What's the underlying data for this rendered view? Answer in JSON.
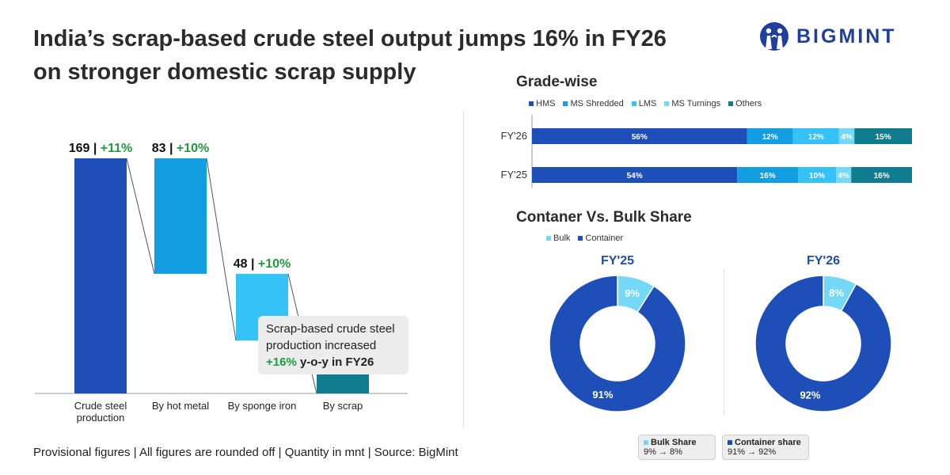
{
  "title_line1": "India’s scrap-based crude steel output jumps 16% in FY26",
  "title_line2": "on stronger domestic scrap supply",
  "logo_text": "BIGMINT",
  "footer": "Provisional figures | All figures are rounded off | Quantity in mnt | Source: BigMint",
  "callout": {
    "line1": "Scrap-based crude steel",
    "line2": "production increased",
    "highlight": "+16%",
    "rest": " y-o-y in FY26"
  },
  "chart_data": [
    {
      "type": "bar",
      "subtype": "waterfall",
      "categories": [
        "Crude steel production",
        "By hot metal",
        "By sponge iron",
        "By scrap"
      ],
      "category_lines": [
        [
          "Crude steel",
          "production"
        ],
        [
          "By hot metal"
        ],
        [
          "By sponge iron"
        ],
        [
          "By scrap"
        ]
      ],
      "values": [
        169,
        83,
        48,
        38
      ],
      "value_labels": [
        "169",
        "83",
        "48",
        "38"
      ],
      "yoy": [
        "+11%",
        "+10%",
        "+10%",
        "+16%"
      ],
      "colors": [
        "#1e4fb8",
        "#129ee0",
        "#35c3f7",
        "#0f7d8f"
      ],
      "total_index": 0
    },
    {
      "type": "bar",
      "subtype": "stacked-horizontal-100",
      "title": "Grade-wise",
      "categories": [
        "FY'26",
        "FY'25"
      ],
      "series": [
        {
          "name": "HMS",
          "color": "#1e4fb8",
          "values": [
            56,
            54
          ]
        },
        {
          "name": "MS Shredded",
          "color": "#129ee0",
          "values": [
            12,
            16
          ]
        },
        {
          "name": "LMS",
          "color": "#35c3f7",
          "values": [
            12,
            10
          ]
        },
        {
          "name": "MS Turnings",
          "color": "#74d9f9",
          "values": [
            4,
            4
          ]
        },
        {
          "name": "Others",
          "color": "#0f7d8f",
          "values": [
            15,
            16
          ]
        }
      ]
    },
    {
      "type": "pie",
      "subtype": "donut",
      "title": "Contaner Vs. Bulk Share",
      "legend": [
        {
          "name": "Bulk",
          "color": "#74d9f9"
        },
        {
          "name": "Container",
          "color": "#1e4fb8"
        }
      ],
      "charts": [
        {
          "label": "FY'25",
          "bulk": 9,
          "container": 91
        },
        {
          "label": "FY'26",
          "bulk": 8,
          "container": 92
        }
      ]
    }
  ],
  "cards": [
    {
      "label": "Bulk Share",
      "value": "9% → 8%",
      "color": "#74d9f9"
    },
    {
      "label": "Container share",
      "value": "91% → 92%",
      "color": "#1e4fb8"
    }
  ]
}
